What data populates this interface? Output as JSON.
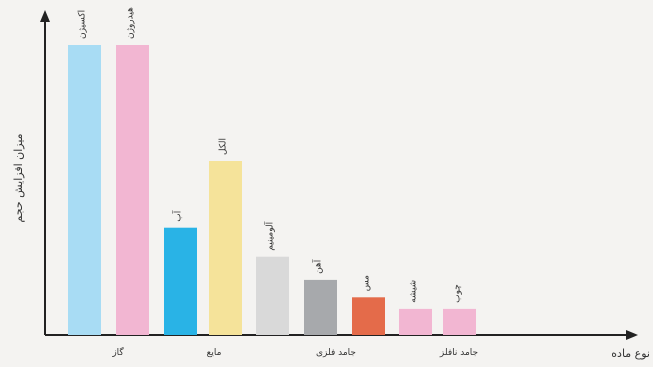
{
  "chart_data": {
    "type": "bar",
    "ylabel": "میزان افزایش حجم",
    "xlabel": "نوع ماده",
    "groups": [
      "گاز",
      "مایع",
      "جامد فلزی",
      "جامد نافلز"
    ],
    "bars": [
      {
        "group": 0,
        "label": "اکسیژن",
        "value": 100,
        "color": "#a8dcf4"
      },
      {
        "group": 0,
        "label": "هیدروژن",
        "value": 100,
        "color": "#f2b6d2"
      },
      {
        "group": 1,
        "label": "آب",
        "value": 37,
        "color": "#29b3e6"
      },
      {
        "group": 1,
        "label": "الکل",
        "value": 60,
        "color": "#f5e39a"
      },
      {
        "group": 2,
        "label": "آلومینیم",
        "value": 27,
        "color": "#d9d9d9"
      },
      {
        "group": 2,
        "label": "آهن",
        "value": 19,
        "color": "#a7a9ac"
      },
      {
        "group": 2,
        "label": "مس",
        "value": 13,
        "color": "#e46b4a"
      },
      {
        "group": 3,
        "label": "شیشه",
        "value": 9,
        "color": "#f2b6d2"
      },
      {
        "group": 3,
        "label": "چوب",
        "value": 9,
        "color": "#f2b6d2"
      }
    ],
    "ylim": [
      0,
      115
    ],
    "grid": false
  }
}
